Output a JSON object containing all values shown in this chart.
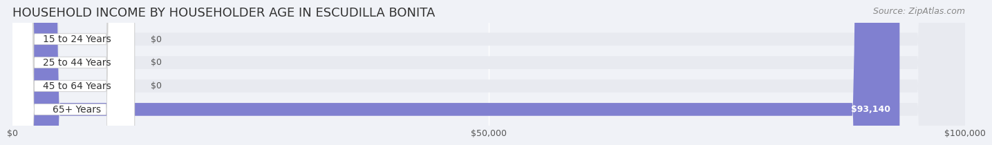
{
  "title": "HOUSEHOLD INCOME BY HOUSEHOLDER AGE IN ESCUDILLA BONITA",
  "source": "Source: ZipAtlas.com",
  "categories": [
    "15 to 24 Years",
    "25 to 44 Years",
    "45 to 64 Years",
    "65+ Years"
  ],
  "values": [
    0,
    0,
    0,
    93140
  ],
  "bar_colors": [
    "#a8bfe0",
    "#c9a8d4",
    "#7ecec4",
    "#8080d0"
  ],
  "label_colors": [
    "#a8bfe0",
    "#c9a8d4",
    "#7ecec4",
    "#8080d0"
  ],
  "xlim": [
    0,
    100000
  ],
  "xticks": [
    0,
    50000,
    100000
  ],
  "xtick_labels": [
    "$0",
    "$50,000",
    "$100,000"
  ],
  "background_color": "#f0f2f7",
  "bar_bg_color": "#e8eaf0",
  "title_fontsize": 13,
  "source_fontsize": 9,
  "label_fontsize": 10,
  "value_fontsize": 9,
  "tick_fontsize": 9,
  "bar_height": 0.55,
  "value_label_93140": "$93,140"
}
